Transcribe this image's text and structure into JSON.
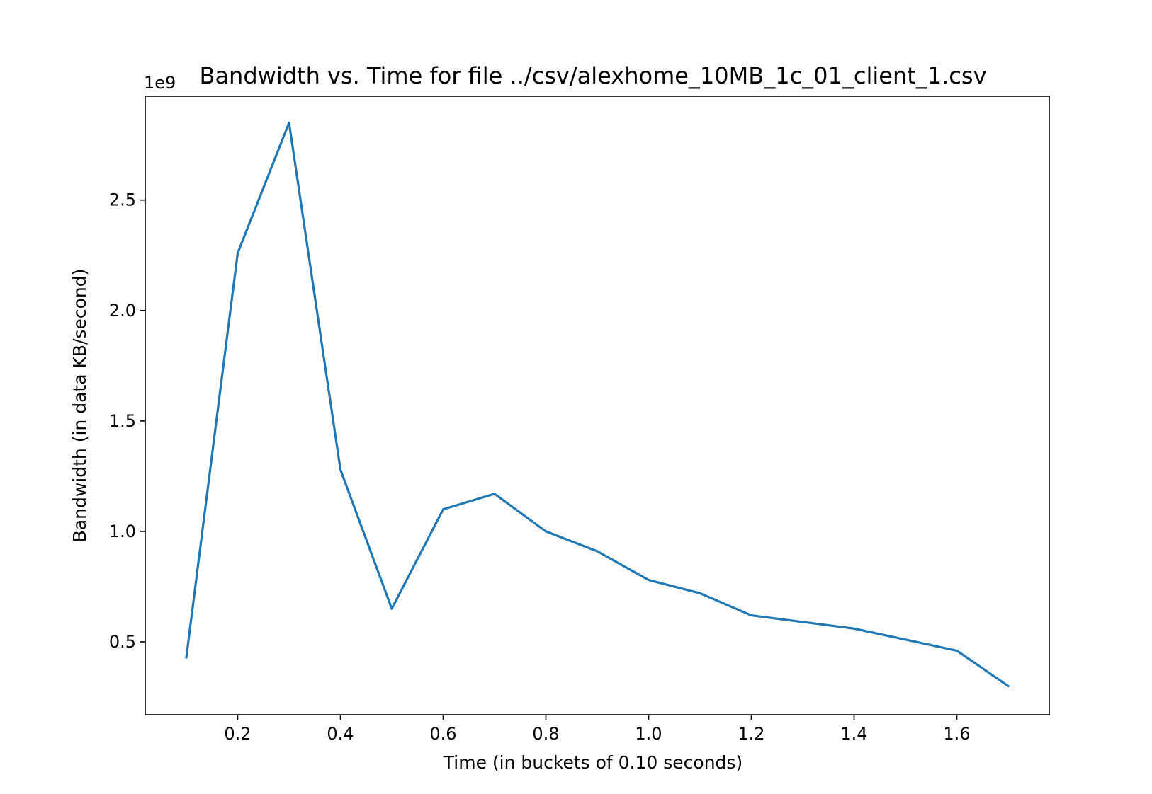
{
  "chart_data": {
    "type": "line",
    "title": "Bandwidth vs. Time for file ../csv/alexhome_10MB_1c_01_client_1.csv",
    "xlabel": "Time (in buckets of 0.10 seconds)",
    "ylabel": "Bandwidth (in data KB/second)",
    "y_offset_label": "1e9",
    "xlim": [
      0.02,
      1.78
    ],
    "ylim": [
      0.17,
      2.97
    ],
    "x_ticks": [
      0.2,
      0.4,
      0.6,
      0.8,
      1.0,
      1.2,
      1.4,
      1.6
    ],
    "x_tick_labels": [
      "0.2",
      "0.4",
      "0.6",
      "0.8",
      "1.0",
      "1.2",
      "1.4",
      "1.6"
    ],
    "y_ticks": [
      0.5,
      1.0,
      1.5,
      2.0,
      2.5
    ],
    "y_tick_labels": [
      "0.5",
      "1.0",
      "1.5",
      "2.0",
      "2.5"
    ],
    "grid": false,
    "series": [
      {
        "color": "#1f77b4",
        "x": [
          0.1,
          0.2,
          0.3,
          0.4,
          0.5,
          0.6,
          0.7,
          0.8,
          0.9,
          1.0,
          1.1,
          1.2,
          1.3,
          1.4,
          1.5,
          1.6,
          1.7
        ],
        "y": [
          0.43,
          2.26,
          2.85,
          1.28,
          0.65,
          1.1,
          1.17,
          1.0,
          0.91,
          0.78,
          0.72,
          0.62,
          0.59,
          0.56,
          0.51,
          0.46,
          0.3
        ]
      }
    ]
  }
}
